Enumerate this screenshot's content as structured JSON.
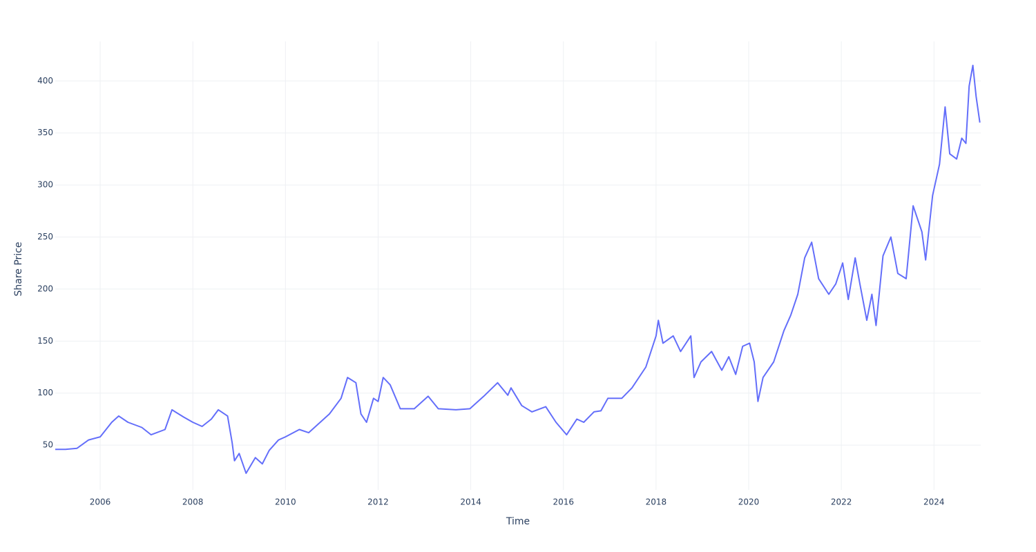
{
  "chart_data": {
    "type": "line",
    "xlabel": "Time",
    "ylabel": "Share Price",
    "x": [
      2005.03,
      2005.25,
      2005.5,
      2005.75,
      2006.0,
      2006.25,
      2006.4,
      2006.6,
      2006.9,
      2007.1,
      2007.4,
      2007.55,
      2007.8,
      2008.0,
      2008.2,
      2008.4,
      2008.55,
      2008.75,
      2008.85,
      2008.9,
      2009.0,
      2009.15,
      2009.35,
      2009.5,
      2009.65,
      2009.85,
      2010.0,
      2010.3,
      2010.5,
      2010.7,
      2010.95,
      2011.2,
      2011.34,
      2011.52,
      2011.63,
      2011.75,
      2011.9,
      2012.0,
      2012.11,
      2012.26,
      2012.48,
      2012.78,
      2013.08,
      2013.3,
      2013.68,
      2013.98,
      2014.28,
      2014.58,
      2014.8,
      2014.87,
      2015.1,
      2015.32,
      2015.62,
      2015.84,
      2016.07,
      2016.29,
      2016.44,
      2016.66,
      2016.81,
      2016.96,
      2017.26,
      2017.48,
      2017.78,
      2018.0,
      2018.05,
      2018.15,
      2018.37,
      2018.53,
      2018.75,
      2018.82,
      2018.97,
      2019.2,
      2019.42,
      2019.57,
      2019.72,
      2019.87,
      2020.02,
      2020.12,
      2020.2,
      2020.31,
      2020.54,
      2020.76,
      2020.91,
      2021.06,
      2021.21,
      2021.36,
      2021.51,
      2021.73,
      2021.88,
      2022.03,
      2022.15,
      2022.3,
      2022.4,
      2022.55,
      2022.66,
      2022.75,
      2022.9,
      2023.07,
      2023.22,
      2023.4,
      2023.55,
      2023.74,
      2023.82,
      2023.97,
      2024.12,
      2024.24,
      2024.34,
      2024.49,
      2024.6,
      2024.69,
      2024.76,
      2024.84,
      2024.91,
      2024.99
    ],
    "series": [
      {
        "name": "Share Price",
        "color": "#636efa",
        "values": [
          46,
          46,
          47,
          55,
          58,
          72,
          78,
          72,
          67,
          60,
          65,
          84,
          77,
          72,
          68,
          75,
          84,
          78,
          52,
          35,
          42,
          23,
          38,
          32,
          45,
          55,
          58,
          65,
          62,
          70,
          80,
          95,
          115,
          110,
          80,
          72,
          95,
          92,
          115,
          108,
          85,
          85,
          97,
          85,
          84,
          85,
          97,
          110,
          98,
          105,
          88,
          82,
          87,
          72,
          60,
          75,
          72,
          82,
          83,
          95,
          95,
          105,
          125,
          155,
          170,
          148,
          155,
          140,
          155,
          115,
          130,
          140,
          122,
          135,
          118,
          145,
          148,
          130,
          92,
          115,
          130,
          160,
          175,
          195,
          230,
          245,
          210,
          195,
          205,
          225,
          190,
          230,
          205,
          170,
          195,
          165,
          232,
          250,
          215,
          210,
          280,
          255,
          228,
          290,
          320,
          375,
          330,
          325,
          345,
          340,
          395,
          415,
          385,
          360
        ]
      }
    ],
    "xlim": [
      2005.03,
      2025.01
    ],
    "xticks": [
      2006,
      2008,
      2010,
      2012,
      2014,
      2016,
      2018,
      2020,
      2022,
      2024
    ],
    "ylim": [
      7,
      438
    ],
    "yticks": [
      50,
      100,
      150,
      200,
      250,
      300,
      350,
      400
    ],
    "grid": true
  }
}
